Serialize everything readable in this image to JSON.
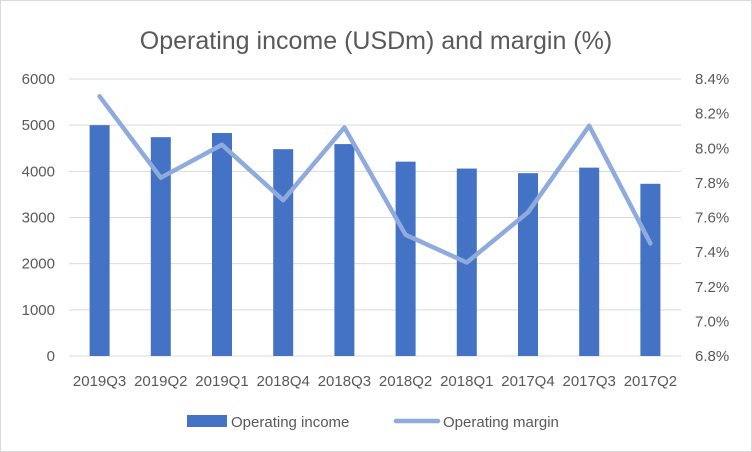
{
  "chart_data": {
    "type": "bar",
    "title": "Operating income (USDm) and margin (%)",
    "categories": [
      "2019Q3",
      "2019Q2",
      "2019Q1",
      "2018Q4",
      "2018Q3",
      "2018Q2",
      "2018Q1",
      "2017Q4",
      "2017Q3",
      "2017Q2"
    ],
    "series": [
      {
        "name": "Operating income",
        "type": "bar",
        "axis": "left",
        "color": "#4472c4",
        "values": [
          5000,
          4740,
          4830,
          4480,
          4590,
          4210,
          4060,
          3960,
          4080,
          3730
        ]
      },
      {
        "name": "Operating margin",
        "type": "line",
        "axis": "right",
        "color": "#8faadc",
        "values": [
          8.3,
          7.83,
          8.02,
          7.7,
          8.12,
          7.5,
          7.34,
          7.63,
          8.13,
          7.45
        ]
      }
    ],
    "ylim": [
      0,
      6000
    ],
    "y_ticks": [
      "0",
      "1000",
      "2000",
      "3000",
      "4000",
      "5000",
      "6000"
    ],
    "y2lim": [
      6.8,
      8.4
    ],
    "y2_ticks": [
      "6.8%",
      "7.0%",
      "7.2%",
      "7.4%",
      "7.6%",
      "7.8%",
      "8.0%",
      "8.2%",
      "8.4%"
    ],
    "grid": true,
    "legend_position": "bottom"
  }
}
